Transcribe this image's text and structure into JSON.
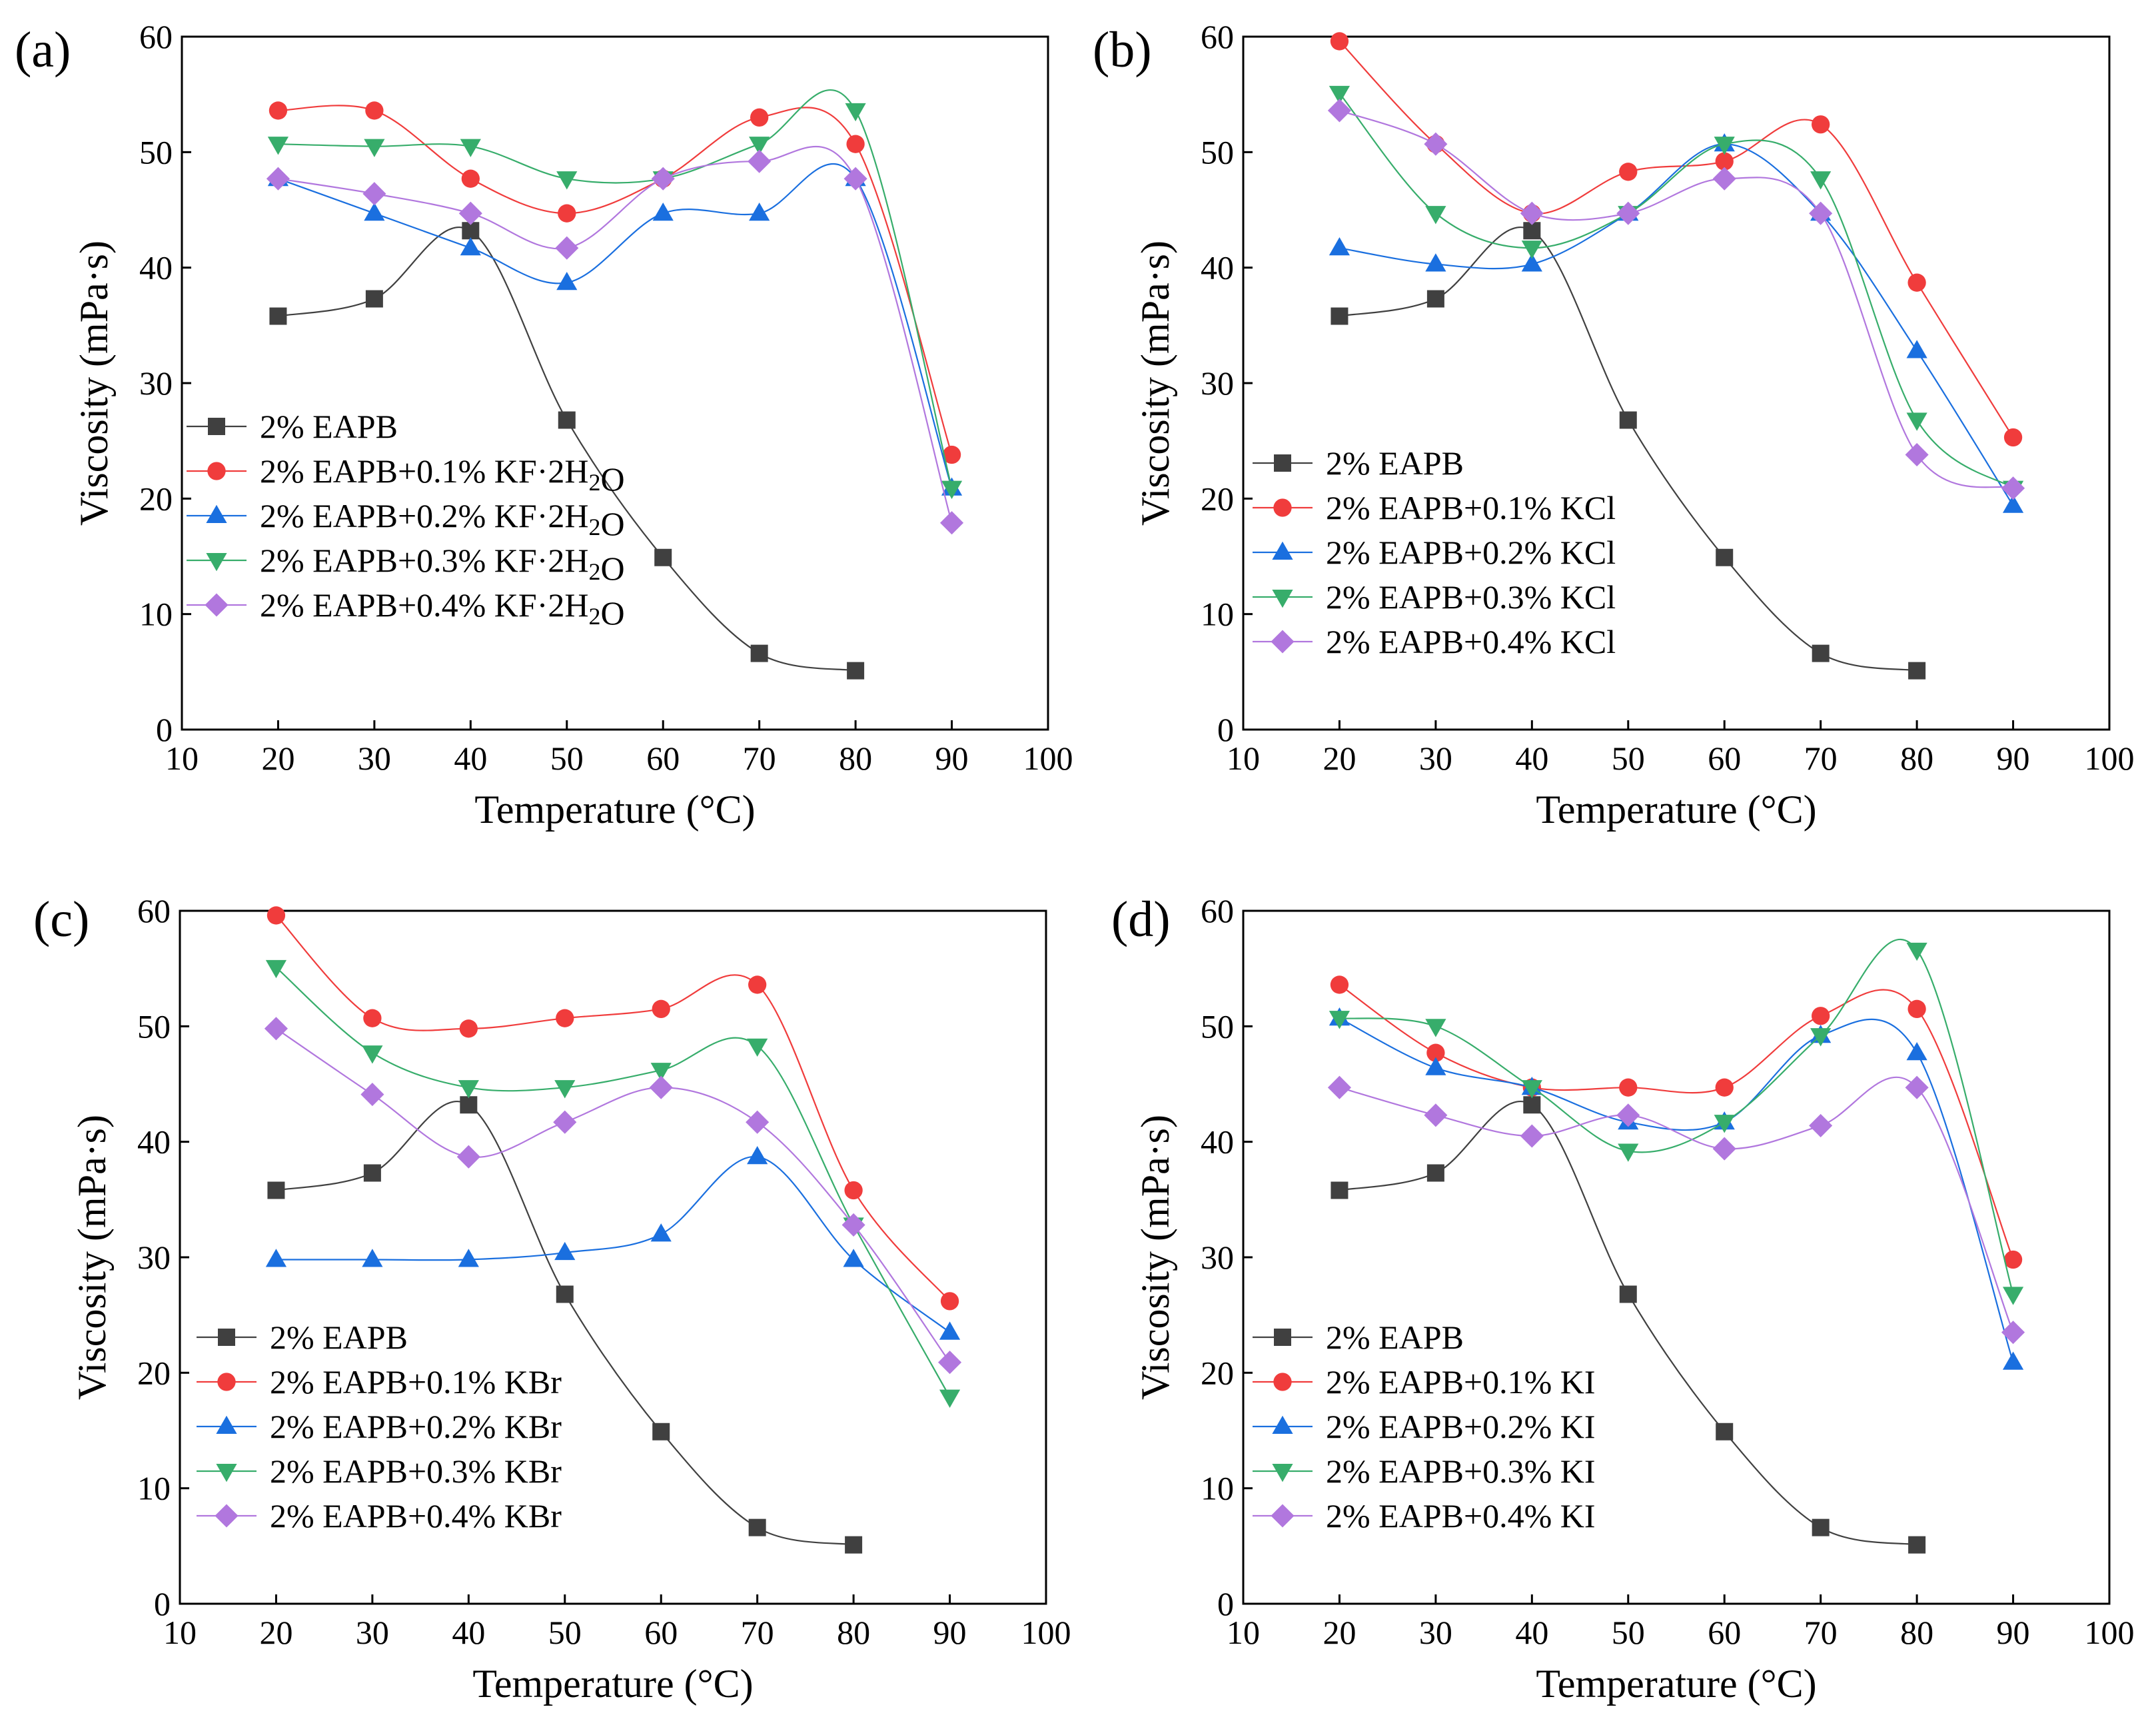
{
  "figure": {
    "chart_data": [
      {
        "type": "line",
        "panel_label": "(a)",
        "xlabel": "Temperature (°C)",
        "ylabel": "Viscosity (mPa·s)",
        "xlim": [
          10,
          100
        ],
        "ylim": [
          0,
          60
        ],
        "xticks": [
          10,
          20,
          30,
          40,
          50,
          60,
          70,
          80,
          90,
          100
        ],
        "yticks": [
          0,
          10,
          20,
          30,
          40,
          50,
          60
        ],
        "grid": false,
        "legend_position": "bottom-left",
        "series": [
          {
            "name": "2% EAPB",
            "marker": "square",
            "color": "#404040",
            "x": [
              20,
              30,
              40,
              50,
              60,
              70,
              80
            ],
            "y": [
              35.8,
              37.3,
              43.2,
              26.8,
              14.9,
              6.6,
              5.1
            ]
          },
          {
            "name": "2% EAPB+0.1% KF·2H₂O",
            "marker": "circle",
            "color": "#f03c3c",
            "x": [
              20,
              30,
              40,
              50,
              60,
              70,
              80,
              90
            ],
            "y": [
              53.6,
              53.6,
              47.7,
              44.7,
              47.7,
              53.0,
              50.7,
              23.8
            ]
          },
          {
            "name": "2% EAPB+0.2% KF·2H₂O",
            "marker": "triangle-up",
            "color": "#1a6fdf",
            "x": [
              20,
              30,
              40,
              50,
              60,
              70,
              80,
              90
            ],
            "y": [
              47.7,
              44.7,
              41.7,
              38.7,
              44.7,
              44.7,
              47.7,
              20.9
            ]
          },
          {
            "name": "2% EAPB+0.3% KF·2H₂O",
            "marker": "triangle-down",
            "color": "#37ad6b",
            "x": [
              20,
              30,
              40,
              50,
              60,
              70,
              80,
              90
            ],
            "y": [
              50.7,
              50.5,
              50.5,
              47.7,
              47.7,
              50.7,
              53.6,
              20.9
            ]
          },
          {
            "name": "2% EAPB+0.4% KF·2H₂O",
            "marker": "diamond",
            "color": "#b177de",
            "x": [
              20,
              30,
              40,
              50,
              60,
              70,
              80,
              90
            ],
            "y": [
              47.7,
              46.4,
              44.7,
              41.7,
              47.7,
              49.2,
              47.7,
              17.9
            ]
          }
        ]
      },
      {
        "type": "line",
        "panel_label": "(b)",
        "xlabel": "Temperature (°C)",
        "ylabel": "Viscosity (mPa·s)",
        "xlim": [
          10,
          100
        ],
        "ylim": [
          0,
          60
        ],
        "xticks": [
          10,
          20,
          30,
          40,
          50,
          60,
          70,
          80,
          90,
          100
        ],
        "yticks": [
          0,
          10,
          20,
          30,
          40,
          50,
          60
        ],
        "grid": false,
        "legend_position": "bottom-left",
        "series": [
          {
            "name": "2% EAPB",
            "marker": "square",
            "color": "#404040",
            "x": [
              20,
              30,
              40,
              50,
              60,
              70,
              80
            ],
            "y": [
              35.8,
              37.3,
              43.2,
              26.8,
              14.9,
              6.6,
              5.1
            ]
          },
          {
            "name": "2% EAPB+0.1% KCl",
            "marker": "circle",
            "color": "#f03c3c",
            "x": [
              20,
              30,
              40,
              50,
              60,
              70,
              80,
              90
            ],
            "y": [
              59.6,
              50.7,
              44.7,
              48.3,
              49.2,
              52.4,
              38.7,
              25.3
            ]
          },
          {
            "name": "2% EAPB+0.2% KCl",
            "marker": "triangle-up",
            "color": "#1a6fdf",
            "x": [
              20,
              30,
              40,
              50,
              60,
              70,
              80,
              90
            ],
            "y": [
              41.7,
              40.3,
              40.3,
              44.7,
              50.7,
              44.7,
              32.8,
              19.4
            ]
          },
          {
            "name": "2% EAPB+0.3% KCl",
            "marker": "triangle-down",
            "color": "#37ad6b",
            "x": [
              20,
              30,
              40,
              50,
              60,
              70,
              80,
              90
            ],
            "y": [
              55.1,
              44.7,
              41.7,
              44.7,
              50.7,
              47.7,
              26.8,
              20.9
            ]
          },
          {
            "name": "2% EAPB+0.4% KCl",
            "marker": "diamond",
            "color": "#b177de",
            "x": [
              20,
              30,
              40,
              50,
              60,
              70,
              80,
              90
            ],
            "y": [
              53.6,
              50.7,
              44.7,
              44.7,
              47.7,
              44.7,
              23.8,
              20.9
            ]
          }
        ]
      },
      {
        "type": "line",
        "panel_label": "(c)",
        "xlabel": "Temperature (°C)",
        "ylabel": "Viscosity (mPa·s)",
        "xlim": [
          10,
          100
        ],
        "ylim": [
          0,
          60
        ],
        "xticks": [
          10,
          20,
          30,
          40,
          50,
          60,
          70,
          80,
          90,
          100
        ],
        "yticks": [
          0,
          10,
          20,
          30,
          40,
          50,
          60
        ],
        "grid": false,
        "legend_position": "bottom-left",
        "series": [
          {
            "name": "2% EAPB",
            "marker": "square",
            "color": "#404040",
            "x": [
              20,
              30,
              40,
              50,
              60,
              70,
              80
            ],
            "y": [
              35.8,
              37.3,
              43.2,
              26.8,
              14.9,
              6.6,
              5.1
            ]
          },
          {
            "name": "2% EAPB+0.1% KBr",
            "marker": "circle",
            "color": "#f03c3c",
            "x": [
              20,
              30,
              40,
              50,
              60,
              70,
              80,
              90
            ],
            "y": [
              59.6,
              50.7,
              49.8,
              50.7,
              51.5,
              53.6,
              35.8,
              26.2
            ]
          },
          {
            "name": "2% EAPB+0.2% KBr",
            "marker": "triangle-up",
            "color": "#1a6fdf",
            "x": [
              20,
              30,
              40,
              50,
              60,
              70,
              80,
              90
            ],
            "y": [
              29.8,
              29.8,
              29.8,
              30.4,
              32.0,
              38.7,
              29.8,
              23.5
            ]
          },
          {
            "name": "2% EAPB+0.3% KBr",
            "marker": "triangle-down",
            "color": "#37ad6b",
            "x": [
              20,
              30,
              40,
              50,
              60,
              70,
              80,
              90
            ],
            "y": [
              55.1,
              47.7,
              44.7,
              44.7,
              46.2,
              48.3,
              32.8,
              17.9
            ]
          },
          {
            "name": "2% EAPB+0.4% KBr",
            "marker": "diamond",
            "color": "#b177de",
            "x": [
              20,
              30,
              40,
              50,
              60,
              70,
              80,
              90
            ],
            "y": [
              49.8,
              44.1,
              38.7,
              41.7,
              44.7,
              41.7,
              32.8,
              20.9
            ]
          }
        ]
      },
      {
        "type": "line",
        "panel_label": "(d)",
        "xlabel": "Temperature (°C)",
        "ylabel": "Viscosity (mPa·s)",
        "xlim": [
          10,
          100
        ],
        "ylim": [
          0,
          60
        ],
        "xticks": [
          10,
          20,
          30,
          40,
          50,
          60,
          70,
          80,
          90,
          100
        ],
        "yticks": [
          0,
          10,
          20,
          30,
          40,
          50,
          60
        ],
        "grid": false,
        "legend_position": "bottom-left",
        "series": [
          {
            "name": "2% EAPB",
            "marker": "square",
            "color": "#404040",
            "x": [
              20,
              30,
              40,
              50,
              60,
              70,
              80
            ],
            "y": [
              35.8,
              37.3,
              43.2,
              26.8,
              14.9,
              6.6,
              5.1
            ]
          },
          {
            "name": "2% EAPB+0.1% KI",
            "marker": "circle",
            "color": "#f03c3c",
            "x": [
              20,
              30,
              40,
              50,
              60,
              70,
              80,
              90
            ],
            "y": [
              53.6,
              47.7,
              44.7,
              44.7,
              44.7,
              50.9,
              51.5,
              29.8
            ]
          },
          {
            "name": "2% EAPB+0.2% KI",
            "marker": "triangle-up",
            "color": "#1a6fdf",
            "x": [
              20,
              30,
              40,
              50,
              60,
              70,
              80,
              90
            ],
            "y": [
              50.7,
              46.4,
              44.7,
              41.7,
              41.7,
              49.2,
              47.7,
              20.9
            ]
          },
          {
            "name": "2% EAPB+0.3% KI",
            "marker": "triangle-down",
            "color": "#37ad6b",
            "x": [
              20,
              30,
              40,
              50,
              60,
              70,
              80,
              90
            ],
            "y": [
              50.7,
              50.0,
              44.7,
              39.2,
              41.7,
              49.2,
              56.6,
              26.8
            ]
          },
          {
            "name": "2% EAPB+0.4% KI",
            "marker": "diamond",
            "color": "#b177de",
            "x": [
              20,
              30,
              40,
              50,
              60,
              70,
              80,
              90
            ],
            "y": [
              44.7,
              42.3,
              40.5,
              42.3,
              39.4,
              41.4,
              44.7,
              23.5
            ]
          }
        ]
      }
    ]
  }
}
